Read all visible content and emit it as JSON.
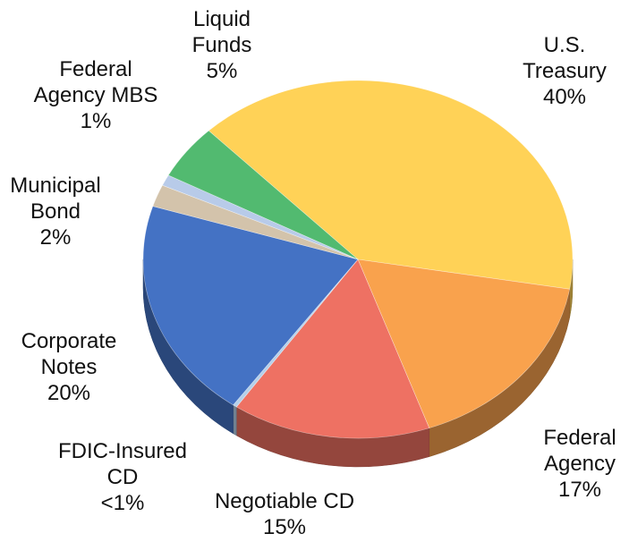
{
  "chart_data": {
    "type": "pie",
    "categories": [
      "U.S. Treasury",
      "Federal Agency",
      "Negotiable CD",
      "FDIC-Insured CD",
      "Corporate Notes",
      "Municipal Bond",
      "Federal Agency MBS",
      "Liquid Funds"
    ],
    "values": [
      40,
      17,
      15,
      0.3,
      20,
      2,
      1,
      5
    ],
    "value_labels": [
      "40%",
      "17%",
      "15%",
      "<1%",
      "20%",
      "2%",
      "1%",
      "5%"
    ],
    "colors": [
      "#ffd257",
      "#f9a24d",
      "#ee7163",
      "#b4d0ea",
      "#4472c4",
      "#d3c3ab",
      "#b8cbe9",
      "#52ba70"
    ]
  }
}
